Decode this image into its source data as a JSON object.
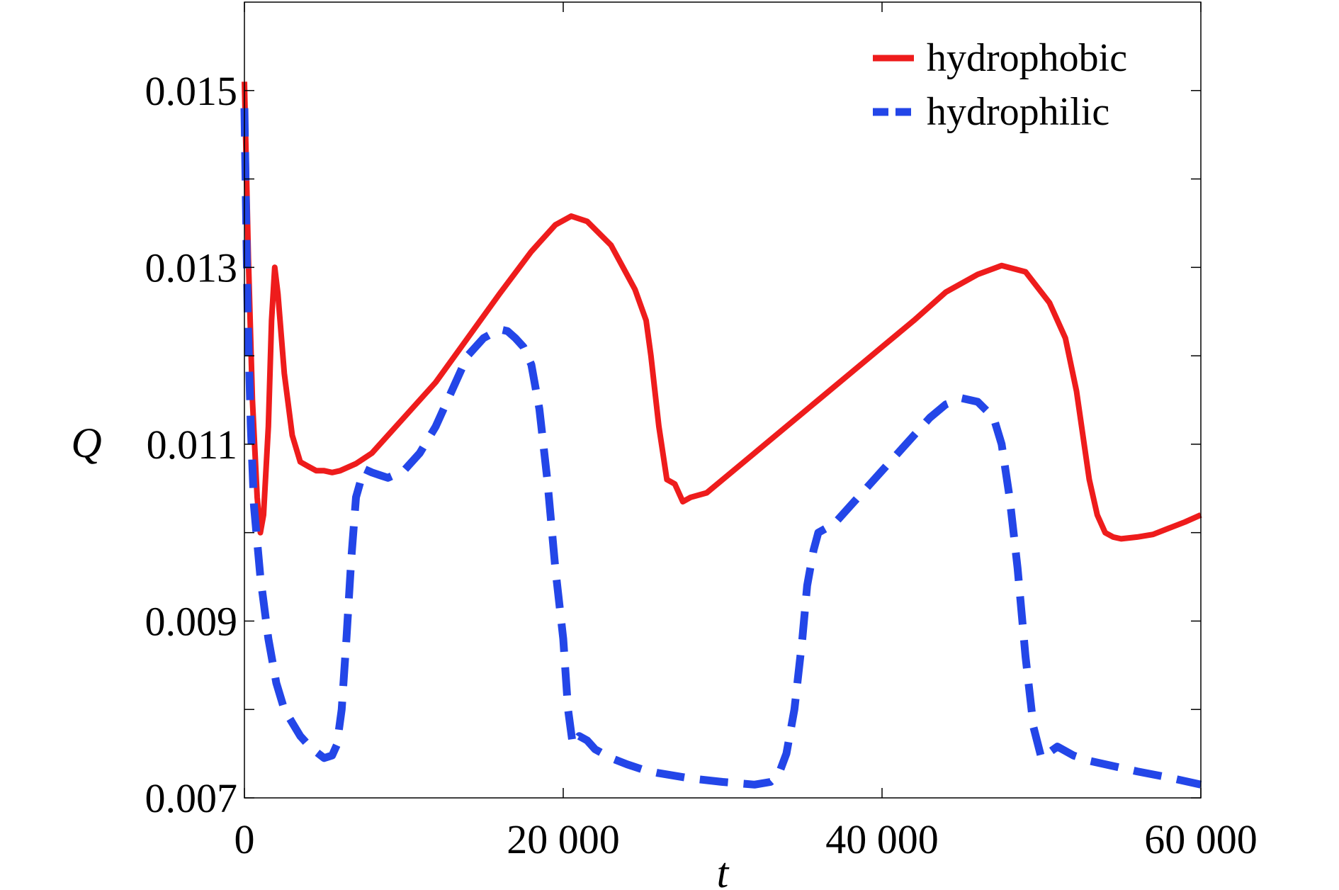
{
  "chart_data": {
    "type": "line",
    "xlabel": "t",
    "ylabel": "Q",
    "xlim": [
      0,
      60000
    ],
    "ylim": [
      0.007,
      0.016
    ],
    "x_ticks": [
      0,
      20000,
      40000,
      60000
    ],
    "x_tick_labels": [
      "0",
      "20 000",
      "40 000",
      "60 000"
    ],
    "y_ticks": [
      0.007,
      0.009,
      0.011,
      0.013,
      0.015
    ],
    "y_tick_labels": [
      "0.007",
      "0.009",
      "0.011",
      "0.013",
      "0.015"
    ],
    "y_minor_ticks": [
      0.008,
      0.01,
      0.012,
      0.014
    ],
    "grid": false,
    "legend_position": "top-right",
    "series": [
      {
        "name": "hydrophobic",
        "style": "solid",
        "color": "#ee1c1c",
        "x": [
          0,
          250,
          500,
          800,
          1000,
          1200,
          1500,
          1700,
          1900,
          2100,
          2500,
          3000,
          3500,
          4000,
          4500,
          5000,
          5500,
          6000,
          7000,
          8000,
          9000,
          10000,
          12000,
          14000,
          16000,
          18000,
          19500,
          20500,
          21500,
          23000,
          24500,
          25200,
          25500,
          26000,
          26500,
          27000,
          27500,
          28000,
          29000,
          30000,
          32000,
          34000,
          36000,
          38000,
          40000,
          42000,
          44000,
          46000,
          47500,
          49000,
          50500,
          51500,
          52200,
          52600,
          53000,
          53500,
          54000,
          54500,
          55000,
          56000,
          57000,
          58000,
          59000,
          60000
        ],
        "y": [
          0.0151,
          0.0131,
          0.0115,
          0.0104,
          0.01,
          0.0102,
          0.0112,
          0.0124,
          0.013,
          0.0127,
          0.0118,
          0.0111,
          0.0108,
          0.01075,
          0.0107,
          0.0107,
          0.01068,
          0.0107,
          0.01078,
          0.0109,
          0.0111,
          0.0113,
          0.0117,
          0.0122,
          0.0127,
          0.01318,
          0.01348,
          0.01358,
          0.01352,
          0.01325,
          0.01275,
          0.0124,
          0.012,
          0.0112,
          0.0106,
          0.01055,
          0.01035,
          0.0104,
          0.01045,
          0.0106,
          0.0109,
          0.0112,
          0.0115,
          0.0118,
          0.0121,
          0.0124,
          0.01272,
          0.01292,
          0.01302,
          0.01295,
          0.0126,
          0.0122,
          0.0116,
          0.0111,
          0.0106,
          0.0102,
          0.01,
          0.00995,
          0.00993,
          0.00995,
          0.00998,
          0.01005,
          0.01012,
          0.0102
        ]
      },
      {
        "name": "hydrophilic",
        "style": "dashed",
        "color": "#2346e8",
        "x": [
          0,
          200,
          400,
          600,
          1000,
          1500,
          2000,
          2500,
          3000,
          3500,
          4000,
          4500,
          5000,
          5500,
          5800,
          6100,
          6400,
          6700,
          7000,
          7500,
          8000,
          8500,
          9000,
          10000,
          11000,
          12000,
          13000,
          14000,
          15000,
          16000,
          16500,
          17000,
          17500,
          18000,
          18500,
          19000,
          19500,
          20000,
          20300,
          20600,
          21000,
          21500,
          22000,
          23000,
          24000,
          25000,
          26000,
          28000,
          30000,
          32000,
          33000,
          33500,
          34000,
          34500,
          35000,
          35300,
          35700,
          36000,
          37000,
          38000,
          39000,
          40000,
          41000,
          42000,
          43000,
          44000,
          45000,
          46000,
          47000,
          47500,
          48000,
          48500,
          49000,
          49500,
          50000,
          51000,
          52000,
          53000,
          54000,
          56000,
          58000,
          60000
        ],
        "y": [
          0.0148,
          0.0125,
          0.0112,
          0.0103,
          0.0095,
          0.0088,
          0.0083,
          0.008,
          0.00785,
          0.0077,
          0.0076,
          0.00752,
          0.00745,
          0.00748,
          0.0076,
          0.008,
          0.0088,
          0.0097,
          0.0104,
          0.01072,
          0.01068,
          0.01065,
          0.01062,
          0.0107,
          0.0109,
          0.0112,
          0.0116,
          0.012,
          0.0122,
          0.0123,
          0.01228,
          0.0122,
          0.0121,
          0.0119,
          0.0114,
          0.0106,
          0.0096,
          0.0088,
          0.008,
          0.0076,
          0.0077,
          0.00765,
          0.00755,
          0.00745,
          0.00738,
          0.00732,
          0.00728,
          0.00722,
          0.00718,
          0.00715,
          0.00718,
          0.00726,
          0.0075,
          0.008,
          0.0088,
          0.0094,
          0.0098,
          0.01,
          0.0101,
          0.0103,
          0.0105,
          0.0107,
          0.0109,
          0.0111,
          0.0113,
          0.01145,
          0.01152,
          0.01148,
          0.0113,
          0.011,
          0.0104,
          0.0096,
          0.0086,
          0.0078,
          0.00745,
          0.00758,
          0.00748,
          0.00742,
          0.00738,
          0.0073,
          0.00723,
          0.00715
        ]
      }
    ]
  },
  "colors": {
    "background": "#ffffff",
    "axis": "#000000",
    "hydrophobic": "#ee1c1c",
    "hydrophilic": "#2346e8"
  }
}
